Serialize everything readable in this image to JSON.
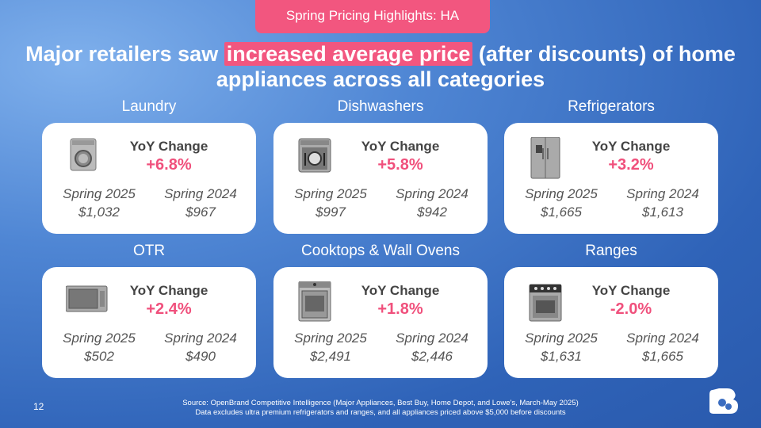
{
  "header": {
    "tag": "Spring Pricing Highlights: HA",
    "title_before": "Major retailers saw ",
    "title_highlight": "increased average price",
    "title_after": " (after discounts) of home appliances across all categories"
  },
  "cards": [
    {
      "category": "Laundry",
      "change_label": "YoY Change",
      "change": "+6.8%",
      "label_2025": "Spring 2025",
      "value_2025": "$1,032",
      "label_2024": "Spring 2024",
      "value_2024": "$967"
    },
    {
      "category": "Dishwashers",
      "change_label": "YoY Change",
      "change": "+5.8%",
      "label_2025": "Spring 2025",
      "value_2025": "$997",
      "label_2024": "Spring 2024",
      "value_2024": "$942"
    },
    {
      "category": "Refrigerators",
      "change_label": "YoY Change",
      "change": "+3.2%",
      "label_2025": "Spring 2025",
      "value_2025": "$1,665",
      "label_2024": "Spring 2024",
      "value_2024": "$1,613"
    },
    {
      "category": "OTR",
      "change_label": "YoY Change",
      "change": "+2.4%",
      "label_2025": "Spring 2025",
      "value_2025": "$502",
      "label_2024": "Spring 2024",
      "value_2024": "$490"
    },
    {
      "category": "Cooktops & Wall Ovens",
      "change_label": "YoY Change",
      "change": "+1.8%",
      "label_2025": "Spring 2025",
      "value_2025": "$2,491",
      "label_2024": "Spring 2024",
      "value_2024": "$2,446"
    },
    {
      "category": "Ranges",
      "change_label": "YoY Change",
      "change": "-2.0%",
      "label_2025": "Spring 2025",
      "value_2025": "$1,631",
      "label_2024": "Spring 2024",
      "value_2024": "$1,665"
    }
  ],
  "footer": {
    "page": "12",
    "source": "Source: OpenBrand Competitive Intelligence (Major Appliances, Best Buy, Home Depot, and Lowe's, March-May 2025)",
    "note": "Data excludes ultra premium refrigerators and ranges, and all appliances priced above $5,000 before discounts"
  }
}
